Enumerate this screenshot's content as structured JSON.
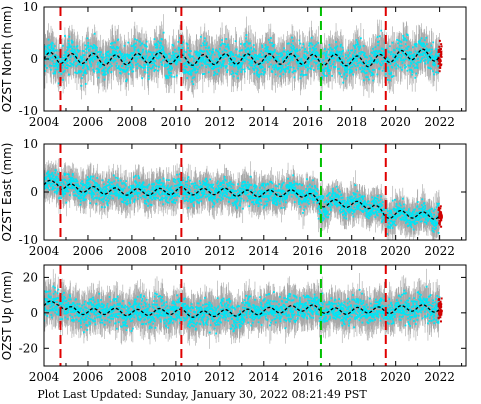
{
  "footer": "Plot Last Updated:   Sunday, January 30, 2022 08:21:49 PST",
  "colors": {
    "errorbar": "#a8a8a8",
    "points": "#00e5f5",
    "model": "#000000",
    "event_red": "#e00000",
    "event_green": "#00c000",
    "recent": "#d00000"
  },
  "chart_data": [
    {
      "type": "scatter",
      "ylabel": "OZST North (mm)",
      "xlim": [
        2004,
        2023.2
      ],
      "ylim": [
        -10,
        10
      ],
      "yticks": [
        -10,
        0,
        10
      ],
      "xticks": [
        2004,
        2006,
        2008,
        2010,
        2012,
        2014,
        2016,
        2018,
        2020,
        2022
      ],
      "series": [
        {
          "values_x": [
            2004.0,
            2004.5,
            2004.7,
            2005.0,
            2006.0,
            2007.0,
            2008.0,
            2009.0,
            2010.0,
            2010.2,
            2011.0,
            2012.0,
            2013.0,
            2014.0,
            2015.0,
            2016.0,
            2016.6,
            2017.0,
            2018.0,
            2019.0,
            2019.5,
            2020.0,
            2021.0,
            2022.0
          ],
          "values_y": [
            0.0,
            0.5,
            0.2,
            0.0,
            0.2,
            -0.3,
            0.0,
            0.3,
            0.0,
            -0.2,
            -0.2,
            0.0,
            0.0,
            0.0,
            0.0,
            0.0,
            -0.3,
            0.0,
            -0.4,
            -0.5,
            0.2,
            0.5,
            1.0,
            0.5
          ],
          "scatter": 2.2,
          "error": 2.8
        }
      ],
      "seasonal_model": {
        "mean": 0.0,
        "amplitude": 1.0
      },
      "events": [
        {
          "x": 2004.75,
          "color": "red"
        },
        {
          "x": 2010.25,
          "color": "red"
        },
        {
          "x": 2016.6,
          "color": "green"
        },
        {
          "x": 2019.55,
          "color": "red"
        }
      ]
    },
    {
      "type": "scatter",
      "ylabel": "OZST East (mm)",
      "xlim": [
        2004,
        2023.2
      ],
      "ylim": [
        -10,
        10
      ],
      "yticks": [
        -10,
        0,
        10
      ],
      "xticks": [
        2004,
        2006,
        2008,
        2010,
        2012,
        2014,
        2016,
        2018,
        2020,
        2022
      ],
      "series": [
        {
          "values_x": [
            2004.0,
            2004.6,
            2004.8,
            2005.2,
            2006.0,
            2007.0,
            2008.0,
            2009.0,
            2010.0,
            2010.3,
            2011.0,
            2012.0,
            2013.0,
            2014.0,
            2015.0,
            2016.0,
            2016.6,
            2017.0,
            2018.0,
            2019.0,
            2019.5,
            2020.0,
            2021.0,
            2022.0
          ],
          "values_y": [
            1.5,
            2.0,
            1.2,
            1.0,
            0.5,
            0.2,
            0.0,
            0.0,
            0.2,
            0.3,
            0.0,
            0.2,
            -0.3,
            -0.3,
            -0.2,
            -0.4,
            -2.5,
            -2.2,
            -2.6,
            -2.8,
            -5.0,
            -4.5,
            -4.8,
            -5.0
          ],
          "scatter": 1.8,
          "error": 2.6
        }
      ],
      "seasonal_model": {
        "mean": 0.0,
        "amplitude": 0.7
      },
      "events": [
        {
          "x": 2004.75,
          "color": "red"
        },
        {
          "x": 2010.25,
          "color": "red"
        },
        {
          "x": 2016.6,
          "color": "green"
        },
        {
          "x": 2019.55,
          "color": "red"
        }
      ]
    },
    {
      "type": "scatter",
      "ylabel": "OZST Up (mm)",
      "xlim": [
        2004,
        2023.2
      ],
      "ylim": [
        -30,
        27
      ],
      "yticks": [
        -20,
        0,
        20
      ],
      "xticks": [
        2004,
        2006,
        2008,
        2010,
        2012,
        2014,
        2016,
        2018,
        2020,
        2022
      ],
      "series": [
        {
          "values_x": [
            2004.0,
            2004.7,
            2005.0,
            2006.0,
            2007.0,
            2008.0,
            2009.0,
            2010.0,
            2010.3,
            2011.0,
            2012.0,
            2013.0,
            2014.0,
            2015.0,
            2016.0,
            2016.6,
            2017.0,
            2018.0,
            2019.0,
            2019.5,
            2020.0,
            2021.0,
            2022.0
          ],
          "values_y": [
            4.0,
            6.0,
            2.0,
            0.5,
            1.0,
            0.0,
            0.5,
            1.0,
            0.0,
            -1.0,
            0.0,
            0.0,
            1.0,
            2.0,
            3.0,
            2.0,
            1.0,
            1.0,
            2.0,
            1.0,
            2.0,
            3.0,
            2.0
          ],
          "scatter": 5.5,
          "error": 8.0
        }
      ],
      "seasonal_model": {
        "mean": 0.0,
        "amplitude": 1.8
      },
      "events": [
        {
          "x": 2004.75,
          "color": "red"
        },
        {
          "x": 2010.25,
          "color": "red"
        },
        {
          "x": 2016.6,
          "color": "green"
        },
        {
          "x": 2019.55,
          "color": "red"
        }
      ]
    }
  ]
}
